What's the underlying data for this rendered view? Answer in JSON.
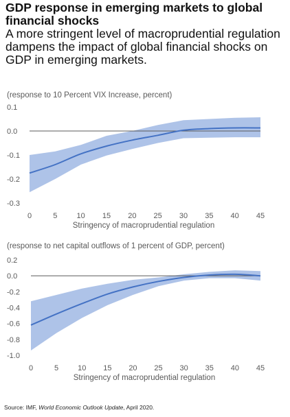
{
  "header": {
    "title": "GDP response in emerging markets to global financial shocks",
    "subtitle": "A more stringent level of macroprudential regulation dampens the impact of global financial shocks on GDP in emerging markets."
  },
  "colors": {
    "band": "#aec3e8",
    "line": "#4472c4",
    "axis": "#595959"
  },
  "chart_data": [
    {
      "type": "line",
      "note": "(response to 10 Percent VIX Increase, percent)",
      "xlabel": "Stringency of macroprudential regulation",
      "ylabel": "",
      "xlim": [
        0,
        45
      ],
      "ylim": [
        -0.3,
        0.1
      ],
      "x_ticks": [
        0,
        5,
        10,
        15,
        20,
        25,
        30,
        35,
        40,
        45
      ],
      "y_ticks": [
        0.1,
        0.0,
        -0.1,
        -0.2,
        -0.3
      ],
      "y_tick_labels": [
        "0.1",
        "0.0",
        "-0.1",
        "-0.2",
        "-0.3"
      ],
      "x": [
        0,
        5,
        10,
        15,
        20,
        25,
        30,
        35,
        40,
        45
      ],
      "series": [
        {
          "role": "estimate",
          "values": [
            -0.175,
            -0.14,
            -0.095,
            -0.063,
            -0.038,
            -0.018,
            0.003,
            0.01,
            0.013,
            0.013
          ]
        },
        {
          "role": "upper",
          "values": [
            -0.1,
            -0.085,
            -0.058,
            -0.02,
            0.0,
            0.025,
            0.045,
            0.05,
            0.055,
            0.057
          ]
        },
        {
          "role": "lower",
          "values": [
            -0.255,
            -0.2,
            -0.14,
            -0.102,
            -0.075,
            -0.05,
            -0.03,
            -0.028,
            -0.026,
            -0.026
          ]
        }
      ]
    },
    {
      "type": "line",
      "note": "(response to net capital outflows of 1 percent of GDP, percent)",
      "xlabel": "Stringency of macroprudential regulation",
      "ylabel": "",
      "xlim": [
        0,
        45
      ],
      "ylim": [
        -1.0,
        0.2
      ],
      "x_ticks": [
        0,
        5,
        10,
        15,
        20,
        25,
        30,
        35,
        40,
        45
      ],
      "y_ticks": [
        0.2,
        0.0,
        -0.2,
        -0.4,
        -0.6,
        -0.8,
        -1.0
      ],
      "y_tick_labels": [
        "0.2",
        "0.0",
        "-0.2",
        "-0.4",
        "-0.6",
        "-0.8",
        "-1.0"
      ],
      "x": [
        0,
        5,
        10,
        15,
        20,
        25,
        30,
        35,
        40,
        45
      ],
      "series": [
        {
          "role": "estimate",
          "values": [
            -0.62,
            -0.48,
            -0.35,
            -0.23,
            -0.14,
            -0.07,
            -0.02,
            0.01,
            0.02,
            0.0
          ]
        },
        {
          "role": "upper",
          "values": [
            -0.32,
            -0.24,
            -0.16,
            -0.1,
            -0.05,
            -0.02,
            0.02,
            0.05,
            0.07,
            0.06
          ]
        },
        {
          "role": "lower",
          "values": [
            -0.94,
            -0.72,
            -0.53,
            -0.37,
            -0.24,
            -0.13,
            -0.06,
            -0.03,
            -0.03,
            -0.06
          ]
        }
      ]
    }
  ],
  "footer": {
    "source_prefix": "Source: IMF, ",
    "source_title": "World Economic Outlook Update",
    "source_suffix": ", April 2020."
  }
}
